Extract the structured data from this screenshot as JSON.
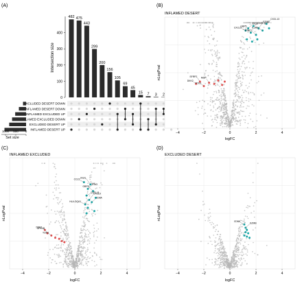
{
  "panels": {
    "A": {
      "letter": "(A)"
    },
    "B": {
      "letter": "(B)"
    },
    "C": {
      "letter": "(C)"
    },
    "D": {
      "letter": "(D)"
    }
  },
  "colors": {
    "bar": "#2b2b2b",
    "dot_background": "#b5b5b5",
    "dot_up": "#1aa6a6",
    "dot_down": "#e0504f",
    "matrix_active": "#222222",
    "matrix_inactive": "#d6d6d6",
    "stripe": "#eeeeee",
    "grid": "#e8e8e8"
  },
  "chart_data": [
    {
      "panel": "A",
      "type": "bar",
      "title": "",
      "ylabel": "Intersection size",
      "ylim": [
        0,
        500
      ],
      "yticks": [
        0,
        100,
        200,
        300,
        400
      ],
      "values": [
        482,
        475,
        443,
        299,
        200,
        156,
        105,
        69,
        45,
        15,
        7,
        3,
        2,
        1
      ],
      "set_names": [
        "EXCLUDED DESERT DOWN",
        "INFLAMED DESERT DOWN",
        "INFLAMED EXCLUDED UP",
        "INFLAMED EXCLUDED DOWN",
        "EXCLUDED DESERT UP",
        "INFLAMED DESERT UP"
      ],
      "set_size_label": "Set size",
      "set_size_ticks": [
        "1000",
        "500",
        "0"
      ],
      "set_size_ticks_values": [
        1000,
        500,
        0
      ],
      "set_sizes": [
        150,
        350,
        530,
        680,
        820,
        1050
      ],
      "membership": [
        [
          5
        ],
        [
          3
        ],
        [
          2
        ],
        [
          1
        ],
        [
          4
        ],
        [
          0
        ],
        [
          2,
          5
        ],
        [
          3,
          1
        ],
        [
          2,
          4
        ],
        [
          0,
          5
        ],
        [
          3,
          5
        ],
        [
          1,
          4
        ],
        [
          2,
          1
        ],
        [
          0,
          3
        ]
      ]
    },
    {
      "panel": "B",
      "type": "scatter",
      "title": "INFLAMED DESERT",
      "xlabel": "logFC",
      "ylabel": "nLogPval",
      "xlim": [
        -5,
        5
      ],
      "xticks": [
        -4,
        -2,
        0,
        2,
        4
      ],
      "background_points": "cloud",
      "up_points": [
        [
          1.2,
          0.88
        ],
        [
          1.4,
          0.9
        ],
        [
          1.6,
          0.86
        ],
        [
          1.8,
          0.92
        ],
        [
          2.0,
          0.84
        ],
        [
          2.2,
          0.9
        ],
        [
          2.5,
          0.88
        ],
        [
          2.8,
          0.94
        ],
        [
          3.0,
          0.9
        ],
        [
          1.3,
          0.8
        ],
        [
          1.7,
          0.78
        ],
        [
          2.1,
          0.8
        ]
      ],
      "down_points": [
        [
          -2.6,
          0.4
        ],
        [
          -2.3,
          0.42
        ],
        [
          -2.0,
          0.38
        ],
        [
          -1.6,
          0.41
        ],
        [
          -1.2,
          0.4
        ],
        [
          -0.9,
          0.43
        ],
        [
          -0.6,
          0.39
        ],
        [
          -0.4,
          0.42
        ]
      ],
      "up_labels": [
        "CXCL9",
        "IDO1",
        "GBP5",
        "CXCL10",
        "STAT1",
        "GZMB",
        "IL2RB",
        "CXCL13"
      ],
      "down_labels": [
        "DKK2",
        "SFRP2",
        "TOX3",
        "MGP"
      ]
    },
    {
      "panel": "C",
      "type": "scatter",
      "title": "INFLAMED EXCLUDED",
      "xlabel": "logFC",
      "ylabel": "nLogPval",
      "xlim": [
        -5,
        5
      ],
      "xticks": [
        -4,
        -2,
        0,
        2,
        4
      ],
      "background_points": "cloud",
      "up_points": [
        [
          0.7,
          0.78
        ],
        [
          1.0,
          0.72
        ],
        [
          1.2,
          0.76
        ],
        [
          0.9,
          0.66
        ],
        [
          1.4,
          0.7
        ],
        [
          1.1,
          0.62
        ],
        [
          0.8,
          0.58
        ],
        [
          1.3,
          0.6
        ],
        [
          1.6,
          0.64
        ],
        [
          1.0,
          0.55
        ],
        [
          1.5,
          0.52
        ],
        [
          0.9,
          0.5
        ]
      ],
      "down_points": [
        [
          -2.3,
          0.35
        ],
        [
          -2.1,
          0.32
        ],
        [
          -1.8,
          0.3
        ],
        [
          -1.5,
          0.28
        ],
        [
          -1.2,
          0.27
        ],
        [
          -1.0,
          0.25
        ],
        [
          -0.8,
          0.24
        ]
      ],
      "up_labels": [
        "CCL5",
        "IFNG",
        "PRF1",
        "CXCL11",
        "GBP1",
        "CXCL9",
        "HLA-DQA1",
        "CD8A"
      ],
      "down_labels": [
        "DKK2",
        "UPK1B",
        "TOX3"
      ]
    },
    {
      "panel": "D",
      "type": "scatter",
      "title": "EXCLUDED DESERT",
      "xlabel": "logFC",
      "ylabel": "nLogPval",
      "xlim": [
        -5,
        5
      ],
      "xticks": [
        -4,
        -2,
        0,
        2,
        4
      ],
      "background_points": "cloud",
      "up_points": [
        [
          1.1,
          0.4
        ],
        [
          1.2,
          0.37
        ],
        [
          1.3,
          0.35
        ],
        [
          1.2,
          0.33
        ],
        [
          1.4,
          0.32
        ],
        [
          1.1,
          0.3
        ],
        [
          1.3,
          0.29
        ],
        [
          1.5,
          0.28
        ]
      ],
      "down_points": [],
      "up_labels": [
        "CD8A",
        "GZMB"
      ],
      "down_labels": []
    }
  ]
}
